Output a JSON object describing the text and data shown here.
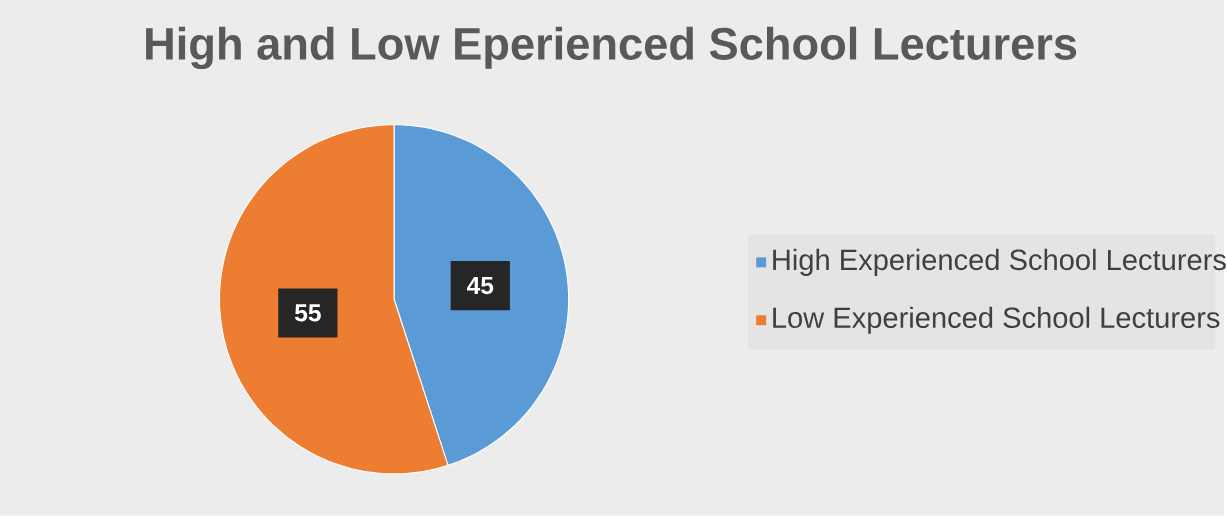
{
  "chart_data": {
    "type": "pie",
    "title": "High and Low Eperienced School Lecturers",
    "categories": [
      "High Experienced School Lecturers",
      "Low Experienced School Lecturers"
    ],
    "values": [
      45,
      55
    ],
    "colors": [
      "#5b9bd5",
      "#ed7d31"
    ],
    "data_labels": true,
    "legend": "right"
  }
}
